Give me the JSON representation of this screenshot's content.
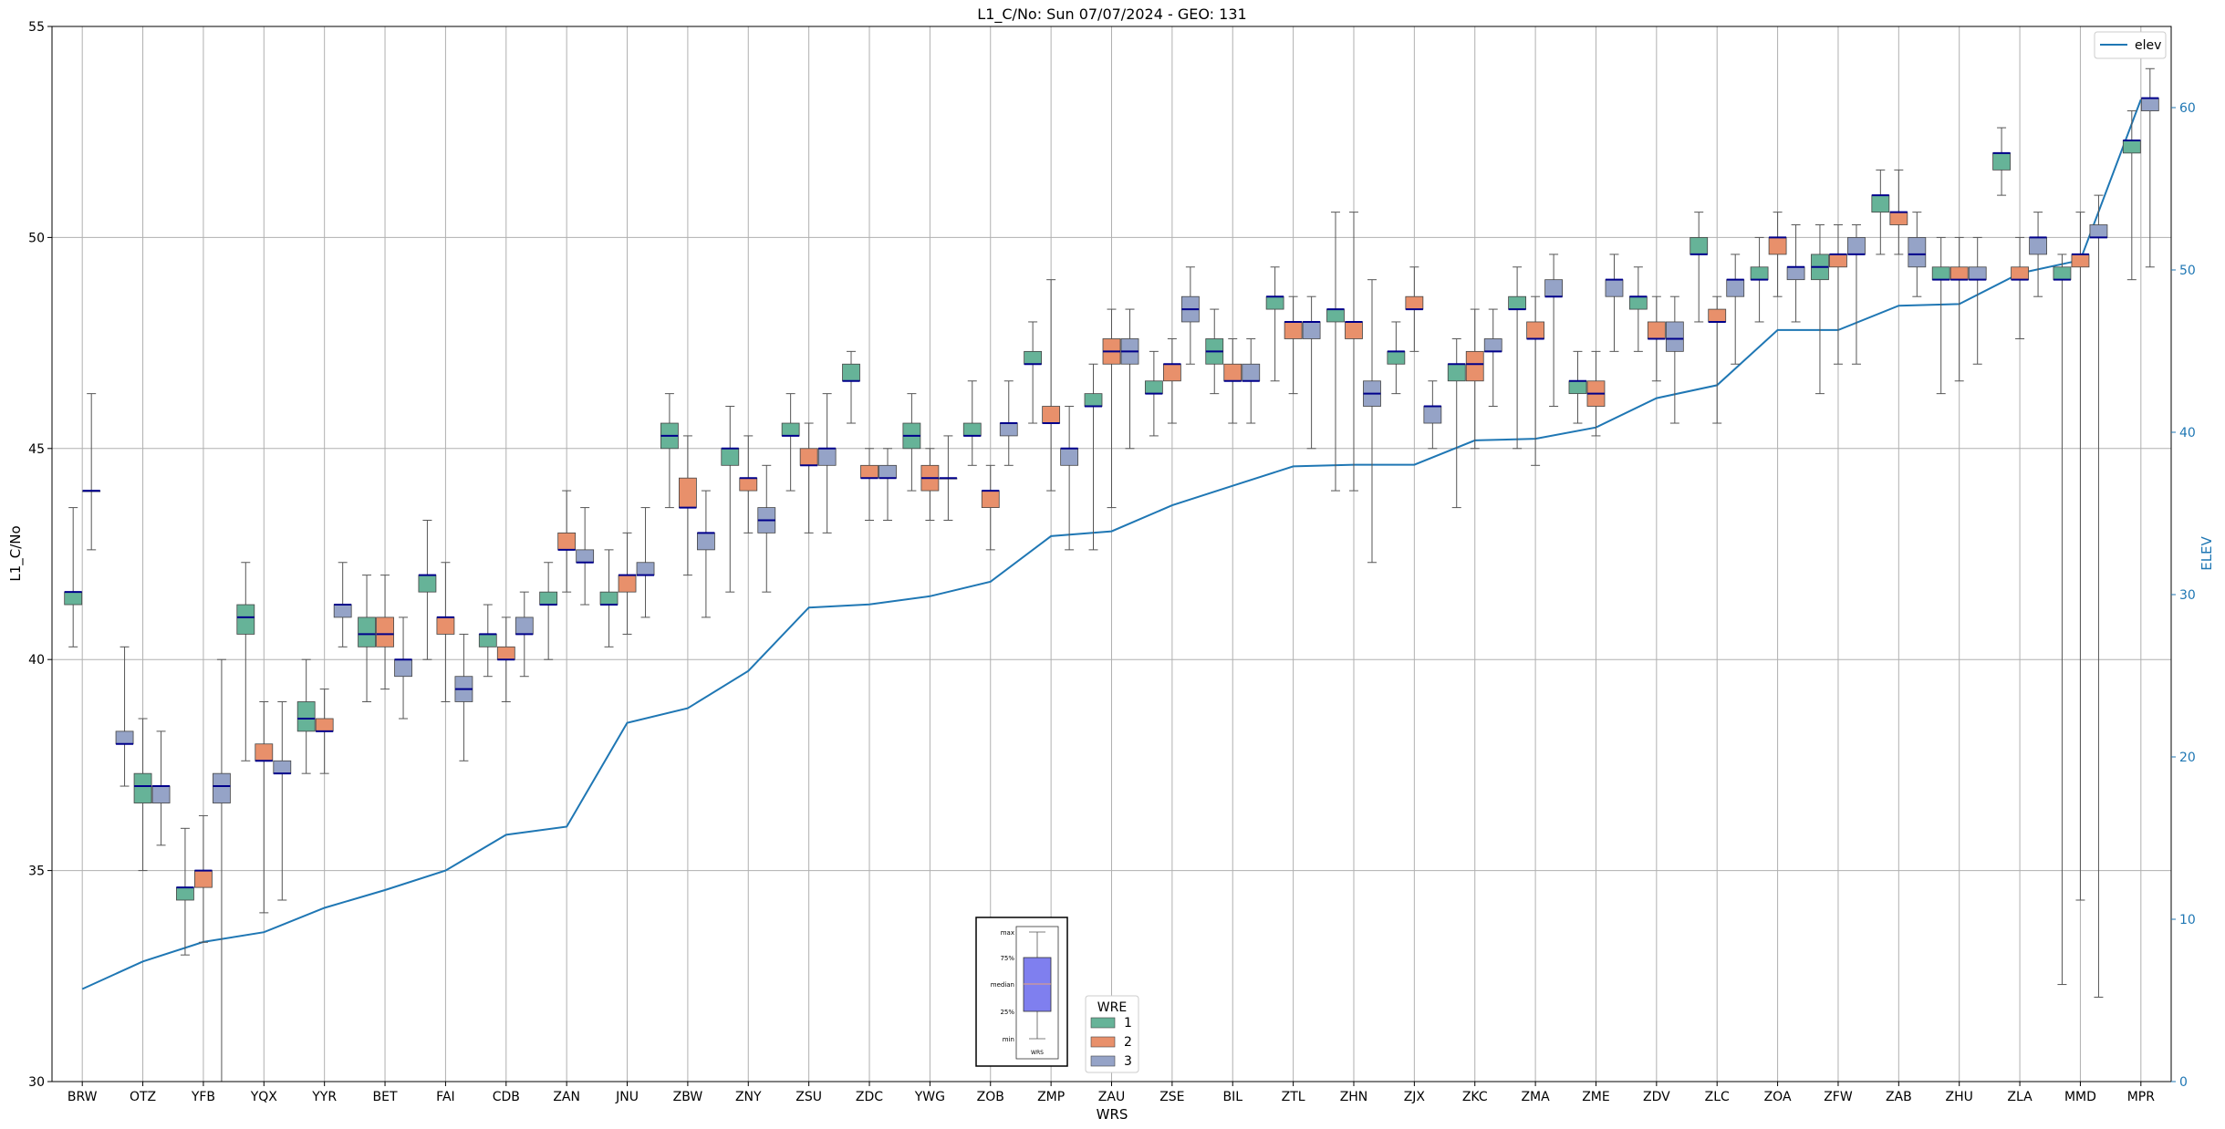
{
  "chart_data": {
    "type": "box",
    "title": "L1_C/No: Sun 07/07/2024 - GEO: 131",
    "xlabel": "WRS",
    "ylabel": "L1_C/No",
    "y2label": "ELEV",
    "ylim": [
      30,
      55
    ],
    "y2lim": [
      0,
      65
    ],
    "yticks": [
      30,
      35,
      40,
      45,
      50,
      55
    ],
    "y2ticks": [
      0,
      10,
      20,
      30,
      40,
      50,
      60
    ],
    "grid": true,
    "categories": [
      "BRW",
      "OTZ",
      "YFB",
      "YQX",
      "YYR",
      "BET",
      "FAI",
      "CDB",
      "ZAN",
      "JNU",
      "ZBW",
      "ZNY",
      "ZSU",
      "ZDC",
      "YWG",
      "ZOB",
      "ZMP",
      "ZAU",
      "ZSE",
      "BIL",
      "ZTL",
      "ZHN",
      "ZJX",
      "ZKC",
      "ZMA",
      "ZME",
      "ZDV",
      "ZLC",
      "ZOA",
      "ZFW",
      "ZAB",
      "ZHU",
      "ZLA",
      "MMD",
      "MPR"
    ],
    "series_colors": {
      "1": "#66b398",
      "2": "#e8906b",
      "3": "#95a3c7"
    },
    "line_color": "#1f77b4",
    "median_color": "#00008b",
    "legend_wre": {
      "title": "WRE",
      "entries": [
        "1",
        "2",
        "3"
      ],
      "placement": "bottom-center"
    },
    "legend_elev": {
      "label": "elev",
      "placement": "top-right"
    },
    "elev": [
      5.7,
      7.4,
      8.6,
      9.2,
      10.7,
      11.8,
      13.0,
      15.2,
      15.7,
      22.1,
      23.0,
      25.3,
      29.2,
      29.4,
      29.9,
      30.8,
      33.6,
      33.9,
      35.5,
      36.7,
      37.9,
      38.0,
      38.0,
      39.5,
      39.6,
      40.3,
      42.1,
      42.9,
      46.3,
      46.3,
      47.8,
      47.9,
      49.8,
      50.6,
      60.5
    ],
    "boxes": [
      {
        "site": "BRW",
        "wre": 1,
        "whislo": 40.3,
        "q1": 41.3,
        "med": 41.6,
        "q3": 41.6,
        "whishi": 43.6
      },
      {
        "site": "BRW",
        "wre": 3,
        "whislo": 42.6,
        "q1": 44.0,
        "med": 44.0,
        "q3": 44.0,
        "whishi": 46.3
      },
      {
        "site": "OTZ",
        "wre": 3,
        "whislo": 37.0,
        "q1": 38.0,
        "med": 38.0,
        "q3": 38.3,
        "whishi": 40.3
      },
      {
        "site": "OTZ",
        "wre": 1,
        "whislo": 35.0,
        "q1": 36.6,
        "med": 37.0,
        "q3": 37.3,
        "whishi": 38.6
      },
      {
        "site": "OTZ",
        "wre": 3,
        "whislo": 35.6,
        "q1": 36.6,
        "med": 37.0,
        "q3": 37.0,
        "whishi": 38.3
      },
      {
        "site": "YFB",
        "wre": 1,
        "whislo": 33.0,
        "q1": 34.3,
        "med": 34.6,
        "q3": 34.6,
        "whishi": 36.0
      },
      {
        "site": "YFB",
        "wre": 2,
        "whislo": 33.3,
        "q1": 34.6,
        "med": 35.0,
        "q3": 35.0,
        "whishi": 36.3
      },
      {
        "site": "YFB",
        "wre": 3,
        "whislo": 30.0,
        "q1": 36.6,
        "med": 37.0,
        "q3": 37.3,
        "whishi": 40.0
      },
      {
        "site": "YQX",
        "wre": 1,
        "whislo": 37.6,
        "q1": 40.6,
        "med": 41.0,
        "q3": 41.3,
        "whishi": 42.3
      },
      {
        "site": "YQX",
        "wre": 2,
        "whislo": 34.0,
        "q1": 37.6,
        "med": 37.6,
        "q3": 38.0,
        "whishi": 39.0
      },
      {
        "site": "YQX",
        "wre": 3,
        "whislo": 34.3,
        "q1": 37.3,
        "med": 37.3,
        "q3": 37.6,
        "whishi": 39.0
      },
      {
        "site": "YYR",
        "wre": 1,
        "whislo": 37.3,
        "q1": 38.3,
        "med": 38.6,
        "q3": 39.0,
        "whishi": 40.0
      },
      {
        "site": "YYR",
        "wre": 2,
        "whislo": 37.3,
        "q1": 38.3,
        "med": 38.3,
        "q3": 38.6,
        "whishi": 39.3
      },
      {
        "site": "YYR",
        "wre": 3,
        "whislo": 40.3,
        "q1": 41.0,
        "med": 41.3,
        "q3": 41.3,
        "whishi": 42.3
      },
      {
        "site": "BET",
        "wre": 1,
        "whislo": 39.0,
        "q1": 40.3,
        "med": 40.6,
        "q3": 41.0,
        "whishi": 42.0
      },
      {
        "site": "BET",
        "wre": 2,
        "whislo": 39.3,
        "q1": 40.3,
        "med": 40.6,
        "q3": 41.0,
        "whishi": 42.0
      },
      {
        "site": "BET",
        "wre": 3,
        "whislo": 38.6,
        "q1": 39.6,
        "med": 40.0,
        "q3": 40.0,
        "whishi": 41.0
      },
      {
        "site": "FAI",
        "wre": 1,
        "whislo": 40.0,
        "q1": 41.6,
        "med": 42.0,
        "q3": 42.0,
        "whishi": 43.3
      },
      {
        "site": "FAI",
        "wre": 2,
        "whislo": 39.0,
        "q1": 40.6,
        "med": 41.0,
        "q3": 41.0,
        "whishi": 42.3
      },
      {
        "site": "FAI",
        "wre": 3,
        "whislo": 37.6,
        "q1": 39.0,
        "med": 39.3,
        "q3": 39.6,
        "whishi": 40.6
      },
      {
        "site": "CDB",
        "wre": 1,
        "whislo": 39.6,
        "q1": 40.3,
        "med": 40.6,
        "q3": 40.6,
        "whishi": 41.3
      },
      {
        "site": "CDB",
        "wre": 2,
        "whislo": 39.0,
        "q1": 40.0,
        "med": 40.0,
        "q3": 40.3,
        "whishi": 41.0
      },
      {
        "site": "CDB",
        "wre": 3,
        "whislo": 39.6,
        "q1": 40.6,
        "med": 40.6,
        "q3": 41.0,
        "whishi": 41.6
      },
      {
        "site": "ZAN",
        "wre": 1,
        "whislo": 40.0,
        "q1": 41.3,
        "med": 41.3,
        "q3": 41.6,
        "whishi": 42.3
      },
      {
        "site": "ZAN",
        "wre": 2,
        "whislo": 41.6,
        "q1": 42.6,
        "med": 42.6,
        "q3": 43.0,
        "whishi": 44.0
      },
      {
        "site": "ZAN",
        "wre": 3,
        "whislo": 41.3,
        "q1": 42.3,
        "med": 42.3,
        "q3": 42.6,
        "whishi": 43.6
      },
      {
        "site": "JNU",
        "wre": 1,
        "whislo": 40.3,
        "q1": 41.3,
        "med": 41.3,
        "q3": 41.6,
        "whishi": 42.6
      },
      {
        "site": "JNU",
        "wre": 2,
        "whislo": 40.6,
        "q1": 41.6,
        "med": 42.0,
        "q3": 42.0,
        "whishi": 43.0
      },
      {
        "site": "JNU",
        "wre": 3,
        "whislo": 41.0,
        "q1": 42.0,
        "med": 42.0,
        "q3": 42.3,
        "whishi": 43.6
      },
      {
        "site": "ZBW",
        "wre": 1,
        "whislo": 43.6,
        "q1": 45.0,
        "med": 45.3,
        "q3": 45.6,
        "whishi": 46.3
      },
      {
        "site": "ZBW",
        "wre": 2,
        "whislo": 42.0,
        "q1": 43.6,
        "med": 43.6,
        "q3": 44.3,
        "whishi": 45.3
      },
      {
        "site": "ZBW",
        "wre": 3,
        "whislo": 41.0,
        "q1": 42.6,
        "med": 43.0,
        "q3": 43.0,
        "whishi": 44.0
      },
      {
        "site": "ZNY",
        "wre": 1,
        "whislo": 41.6,
        "q1": 44.6,
        "med": 45.0,
        "q3": 45.0,
        "whishi": 46.0
      },
      {
        "site": "ZNY",
        "wre": 2,
        "whislo": 43.0,
        "q1": 44.0,
        "med": 44.3,
        "q3": 44.3,
        "whishi": 45.3
      },
      {
        "site": "ZNY",
        "wre": 3,
        "whislo": 41.6,
        "q1": 43.0,
        "med": 43.3,
        "q3": 43.6,
        "whishi": 44.6
      },
      {
        "site": "ZSU",
        "wre": 1,
        "whislo": 44.0,
        "q1": 45.3,
        "med": 45.3,
        "q3": 45.6,
        "whishi": 46.3
      },
      {
        "site": "ZSU",
        "wre": 2,
        "whislo": 43.0,
        "q1": 44.6,
        "med": 44.6,
        "q3": 45.0,
        "whishi": 45.6
      },
      {
        "site": "ZSU",
        "wre": 3,
        "whislo": 43.0,
        "q1": 44.6,
        "med": 45.0,
        "q3": 45.0,
        "whishi": 46.3
      },
      {
        "site": "ZDC",
        "wre": 1,
        "whislo": 45.6,
        "q1": 46.6,
        "med": 46.6,
        "q3": 47.0,
        "whishi": 47.3
      },
      {
        "site": "ZDC",
        "wre": 2,
        "whislo": 43.3,
        "q1": 44.3,
        "med": 44.3,
        "q3": 44.6,
        "whishi": 45.0
      },
      {
        "site": "ZDC",
        "wre": 3,
        "whislo": 43.3,
        "q1": 44.3,
        "med": 44.3,
        "q3": 44.6,
        "whishi": 45.0
      },
      {
        "site": "YWG",
        "wre": 1,
        "whislo": 44.0,
        "q1": 45.0,
        "med": 45.3,
        "q3": 45.6,
        "whishi": 46.3
      },
      {
        "site": "YWG",
        "wre": 2,
        "whislo": 43.3,
        "q1": 44.0,
        "med": 44.3,
        "q3": 44.6,
        "whishi": 45.0
      },
      {
        "site": "YWG",
        "wre": 3,
        "whislo": 43.3,
        "q1": 44.3,
        "med": 44.3,
        "q3": 44.3,
        "whishi": 45.3
      },
      {
        "site": "ZOB",
        "wre": 1,
        "whislo": 44.6,
        "q1": 45.3,
        "med": 45.3,
        "q3": 45.6,
        "whishi": 46.6
      },
      {
        "site": "ZOB",
        "wre": 2,
        "whislo": 42.6,
        "q1": 43.6,
        "med": 44.0,
        "q3": 44.0,
        "whishi": 44.6
      },
      {
        "site": "ZOB",
        "wre": 3,
        "whislo": 44.6,
        "q1": 45.3,
        "med": 45.6,
        "q3": 45.6,
        "whishi": 46.6
      },
      {
        "site": "ZMP",
        "wre": 1,
        "whislo": 45.6,
        "q1": 47.0,
        "med": 47.0,
        "q3": 47.3,
        "whishi": 48.0
      },
      {
        "site": "ZMP",
        "wre": 2,
        "whislo": 44.0,
        "q1": 45.6,
        "med": 45.6,
        "q3": 46.0,
        "whishi": 49.0
      },
      {
        "site": "ZMP",
        "wre": 3,
        "whislo": 42.6,
        "q1": 44.6,
        "med": 45.0,
        "q3": 45.0,
        "whishi": 46.0
      },
      {
        "site": "ZAU",
        "wre": 1,
        "whislo": 42.6,
        "q1": 46.0,
        "med": 46.0,
        "q3": 46.3,
        "whishi": 47.0
      },
      {
        "site": "ZAU",
        "wre": 2,
        "whislo": 43.6,
        "q1": 47.0,
        "med": 47.3,
        "q3": 47.6,
        "whishi": 48.3
      },
      {
        "site": "ZAU",
        "wre": 3,
        "whislo": 45.0,
        "q1": 47.0,
        "med": 47.3,
        "q3": 47.6,
        "whishi": 48.3
      },
      {
        "site": "ZSE",
        "wre": 1,
        "whislo": 45.3,
        "q1": 46.3,
        "med": 46.3,
        "q3": 46.6,
        "whishi": 47.3
      },
      {
        "site": "ZSE",
        "wre": 2,
        "whislo": 45.6,
        "q1": 46.6,
        "med": 47.0,
        "q3": 47.0,
        "whishi": 47.6
      },
      {
        "site": "ZSE",
        "wre": 3,
        "whislo": 47.0,
        "q1": 48.0,
        "med": 48.3,
        "q3": 48.6,
        "whishi": 49.3
      },
      {
        "site": "BIL",
        "wre": 1,
        "whislo": 46.3,
        "q1": 47.0,
        "med": 47.3,
        "q3": 47.6,
        "whishi": 48.3
      },
      {
        "site": "BIL",
        "wre": 2,
        "whislo": 45.6,
        "q1": 46.6,
        "med": 46.6,
        "q3": 47.0,
        "whishi": 47.6
      },
      {
        "site": "BIL",
        "wre": 3,
        "whislo": 45.6,
        "q1": 46.6,
        "med": 46.6,
        "q3": 47.0,
        "whishi": 47.6
      },
      {
        "site": "ZTL",
        "wre": 1,
        "whislo": 46.6,
        "q1": 48.3,
        "med": 48.6,
        "q3": 48.6,
        "whishi": 49.3
      },
      {
        "site": "ZTL",
        "wre": 2,
        "whislo": 46.3,
        "q1": 47.6,
        "med": 48.0,
        "q3": 48.0,
        "whishi": 48.6
      },
      {
        "site": "ZTL",
        "wre": 3,
        "whislo": 45.0,
        "q1": 47.6,
        "med": 48.0,
        "q3": 48.0,
        "whishi": 48.6
      },
      {
        "site": "ZHN",
        "wre": 1,
        "whislo": 44.0,
        "q1": 48.0,
        "med": 48.3,
        "q3": 48.3,
        "whishi": 50.6
      },
      {
        "site": "ZHN",
        "wre": 2,
        "whislo": 44.0,
        "q1": 47.6,
        "med": 48.0,
        "q3": 48.0,
        "whishi": 50.6
      },
      {
        "site": "ZHN",
        "wre": 3,
        "whislo": 42.3,
        "q1": 46.0,
        "med": 46.3,
        "q3": 46.6,
        "whishi": 49.0
      },
      {
        "site": "ZJX",
        "wre": 1,
        "whislo": 46.3,
        "q1": 47.0,
        "med": 47.3,
        "q3": 47.3,
        "whishi": 48.0
      },
      {
        "site": "ZJX",
        "wre": 2,
        "whislo": 47.3,
        "q1": 48.3,
        "med": 48.3,
        "q3": 48.6,
        "whishi": 49.3
      },
      {
        "site": "ZJX",
        "wre": 3,
        "whislo": 45.0,
        "q1": 45.6,
        "med": 46.0,
        "q3": 46.0,
        "whishi": 46.6
      },
      {
        "site": "ZKC",
        "wre": 1,
        "whislo": 43.6,
        "q1": 46.6,
        "med": 47.0,
        "q3": 47.0,
        "whishi": 47.6
      },
      {
        "site": "ZKC",
        "wre": 2,
        "whislo": 45.0,
        "q1": 46.6,
        "med": 47.0,
        "q3": 47.3,
        "whishi": 48.3
      },
      {
        "site": "ZKC",
        "wre": 3,
        "whislo": 46.0,
        "q1": 47.3,
        "med": 47.3,
        "q3": 47.6,
        "whishi": 48.3
      },
      {
        "site": "ZMA",
        "wre": 1,
        "whislo": 45.0,
        "q1": 48.3,
        "med": 48.3,
        "q3": 48.6,
        "whishi": 49.3
      },
      {
        "site": "ZMA",
        "wre": 2,
        "whislo": 44.6,
        "q1": 47.6,
        "med": 47.6,
        "q3": 48.0,
        "whishi": 48.6
      },
      {
        "site": "ZMA",
        "wre": 3,
        "whislo": 46.0,
        "q1": 48.6,
        "med": 48.6,
        "q3": 49.0,
        "whishi": 49.6
      },
      {
        "site": "ZME",
        "wre": 1,
        "whislo": 45.6,
        "q1": 46.3,
        "med": 46.6,
        "q3": 46.6,
        "whishi": 47.3
      },
      {
        "site": "ZME",
        "wre": 2,
        "whislo": 45.3,
        "q1": 46.0,
        "med": 46.3,
        "q3": 46.6,
        "whishi": 47.3
      },
      {
        "site": "ZME",
        "wre": 3,
        "whislo": 47.3,
        "q1": 48.6,
        "med": 49.0,
        "q3": 49.0,
        "whishi": 49.6
      },
      {
        "site": "ZDV",
        "wre": 1,
        "whislo": 47.3,
        "q1": 48.3,
        "med": 48.6,
        "q3": 48.6,
        "whishi": 49.3
      },
      {
        "site": "ZDV",
        "wre": 2,
        "whislo": 46.6,
        "q1": 47.6,
        "med": 47.6,
        "q3": 48.0,
        "whishi": 48.6
      },
      {
        "site": "ZDV",
        "wre": 3,
        "whislo": 45.6,
        "q1": 47.3,
        "med": 47.6,
        "q3": 48.0,
        "whishi": 48.6
      },
      {
        "site": "ZLC",
        "wre": 1,
        "whislo": 48.0,
        "q1": 49.6,
        "med": 49.6,
        "q3": 50.0,
        "whishi": 50.6
      },
      {
        "site": "ZLC",
        "wre": 2,
        "whislo": 45.6,
        "q1": 48.0,
        "med": 48.0,
        "q3": 48.3,
        "whishi": 48.6
      },
      {
        "site": "ZLC",
        "wre": 3,
        "whislo": 47.0,
        "q1": 48.6,
        "med": 49.0,
        "q3": 49.0,
        "whishi": 49.6
      },
      {
        "site": "ZOA",
        "wre": 1,
        "whislo": 48.0,
        "q1": 49.0,
        "med": 49.0,
        "q3": 49.3,
        "whishi": 50.0
      },
      {
        "site": "ZOA",
        "wre": 2,
        "whislo": 48.6,
        "q1": 49.6,
        "med": 50.0,
        "q3": 50.0,
        "whishi": 50.6
      },
      {
        "site": "ZOA",
        "wre": 3,
        "whislo": 48.0,
        "q1": 49.0,
        "med": 49.3,
        "q3": 49.3,
        "whishi": 50.3
      },
      {
        "site": "ZFW",
        "wre": 1,
        "whislo": 46.3,
        "q1": 49.0,
        "med": 49.3,
        "q3": 49.6,
        "whishi": 50.3
      },
      {
        "site": "ZFW",
        "wre": 2,
        "whislo": 47.0,
        "q1": 49.3,
        "med": 49.6,
        "q3": 49.6,
        "whishi": 50.3
      },
      {
        "site": "ZFW",
        "wre": 3,
        "whislo": 47.0,
        "q1": 49.6,
        "med": 49.6,
        "q3": 50.0,
        "whishi": 50.3
      },
      {
        "site": "ZAB",
        "wre": 1,
        "whislo": 49.6,
        "q1": 50.6,
        "med": 51.0,
        "q3": 51.0,
        "whishi": 51.6
      },
      {
        "site": "ZAB",
        "wre": 2,
        "whislo": 49.6,
        "q1": 50.3,
        "med": 50.6,
        "q3": 50.6,
        "whishi": 51.6
      },
      {
        "site": "ZAB",
        "wre": 3,
        "whislo": 48.6,
        "q1": 49.3,
        "med": 49.6,
        "q3": 50.0,
        "whishi": 50.6
      },
      {
        "site": "ZHU",
        "wre": 1,
        "whislo": 46.3,
        "q1": 49.0,
        "med": 49.0,
        "q3": 49.3,
        "whishi": 50.0
      },
      {
        "site": "ZHU",
        "wre": 2,
        "whislo": 46.6,
        "q1": 49.0,
        "med": 49.0,
        "q3": 49.3,
        "whishi": 50.0
      },
      {
        "site": "ZHU",
        "wre": 3,
        "whislo": 47.0,
        "q1": 49.0,
        "med": 49.0,
        "q3": 49.3,
        "whishi": 50.0
      },
      {
        "site": "ZLA",
        "wre": 1,
        "whislo": 51.0,
        "q1": 51.6,
        "med": 52.0,
        "q3": 52.0,
        "whishi": 52.6
      },
      {
        "site": "ZLA",
        "wre": 2,
        "whislo": 47.6,
        "q1": 49.0,
        "med": 49.0,
        "q3": 49.3,
        "whishi": 50.0
      },
      {
        "site": "ZLA",
        "wre": 3,
        "whislo": 48.6,
        "q1": 49.6,
        "med": 50.0,
        "q3": 50.0,
        "whishi": 50.6
      },
      {
        "site": "MMD",
        "wre": 1,
        "whislo": 32.3,
        "q1": 49.0,
        "med": 49.0,
        "q3": 49.3,
        "whishi": 49.6
      },
      {
        "site": "MMD",
        "wre": 2,
        "whislo": 34.3,
        "q1": 49.3,
        "med": 49.6,
        "q3": 49.6,
        "whishi": 50.6
      },
      {
        "site": "MMD",
        "wre": 3,
        "whislo": 32.0,
        "q1": 50.0,
        "med": 50.0,
        "q3": 50.3,
        "whishi": 51.0
      },
      {
        "site": "MPR",
        "wre": 1,
        "whislo": 49.0,
        "q1": 52.0,
        "med": 52.3,
        "q3": 52.3,
        "whishi": 53.0
      },
      {
        "site": "MPR",
        "wre": 3,
        "whislo": 49.3,
        "q1": 53.0,
        "med": 53.3,
        "q3": 53.3,
        "whishi": 54.0
      }
    ],
    "inset_labels": [
      "max",
      "75%",
      "median",
      "25%",
      "min"
    ],
    "inset_xlabel": "WRS"
  }
}
